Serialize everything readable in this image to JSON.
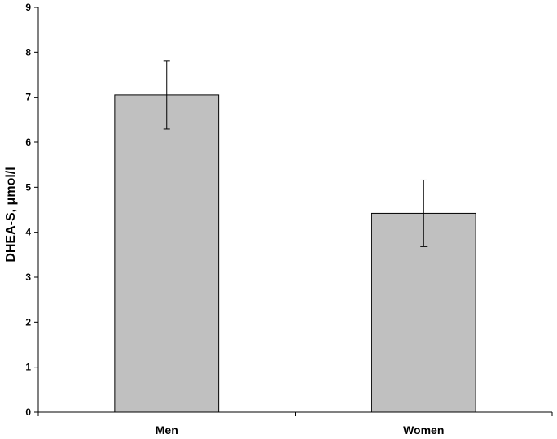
{
  "chart_data": {
    "type": "bar",
    "categories": [
      "Men",
      "Women"
    ],
    "values": [
      7.05,
      4.42
    ],
    "error": [
      0.76,
      0.74
    ],
    "title": "",
    "xlabel": "",
    "ylabel": "DHEA-S, μmol/l",
    "ylim": [
      0,
      9
    ],
    "yticks": [
      "0",
      "1",
      "2",
      "3",
      "4",
      "5",
      "6",
      "7",
      "8",
      "9"
    ],
    "grid": false,
    "bar_color": "#c0c0c0",
    "bar_edge_color": "#000000"
  }
}
